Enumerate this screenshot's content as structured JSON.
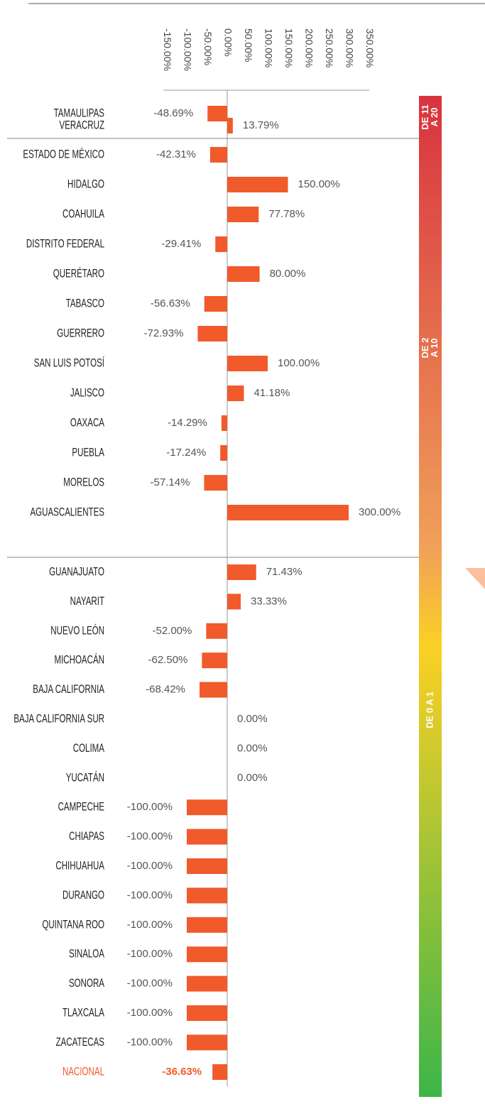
{
  "chart_data": {
    "type": "bar",
    "orientation": "horizontal",
    "color": "#f15a2b",
    "categories": [
      "TAMAULIPAS",
      "VERACRUZ",
      "ESTADO DE MÉXICO",
      "HIDALGO",
      "COAHUILA",
      "DISTRITO FEDERAL",
      "QUERÉTARO",
      "TABASCO",
      "GUERRERO",
      "SAN LUIS POTOSÍ",
      "JALISCO",
      "OAXACA",
      "PUEBLA",
      "MORELOS",
      "AGUASCALIENTES",
      "GUANAJUATO",
      "NAYARIT",
      "NUEVO LEÓN",
      "MICHOACÁN",
      "BAJA CALIFORNIA",
      "BAJA CALIFORNIA SUR",
      "COLIMA",
      "YUCATÁN",
      "CAMPECHE",
      "CHIAPAS",
      "CHIHUAHUA",
      "DURANGO",
      "QUINTANA ROO",
      "SINALOA",
      "SONORA",
      "TLAXCALA",
      "ZACATECAS"
    ],
    "values": [
      -48.69,
      13.79,
      -42.31,
      150,
      77.78,
      -29.41,
      80,
      -56.63,
      -72.93,
      100,
      41.18,
      -14.29,
      -17.24,
      -57.14,
      300,
      71.43,
      33.33,
      -52,
      -62.5,
      -68.42,
      0,
      0,
      0,
      -100,
      -100,
      -100,
      -100,
      -100,
      -100,
      -100,
      -100,
      -100
    ],
    "value_labels": [
      "-48.69%",
      "13.79%",
      "-42.31%",
      "150.00%",
      "77.78%",
      "-29.41%",
      "80.00%",
      "-56.63%",
      "-72.93%",
      "100.00%",
      "41.18%",
      "-14.29%",
      "-17.24%",
      "-57.14%",
      "300.00%",
      "71.43%",
      "33.33%",
      "-52.00%",
      "-62.50%",
      "-68.42%",
      "0.00%",
      "0.00%",
      "0.00%",
      "-100.00%",
      "-100.00%",
      "-100.00%",
      "-100.00%",
      "-100.00%",
      "-100.00%",
      "-100.00%",
      "-100.00%",
      "-100.00%"
    ],
    "total": {
      "name": "NACIONAL",
      "value": -36.63,
      "value_label": "-36.63%",
      "color": "#f15a2b"
    },
    "xlim": [
      -150,
      350
    ],
    "xticks": [
      {
        "value": -150,
        "label": "-150.00%"
      },
      {
        "value": -100,
        "label": "-100.00%"
      },
      {
        "value": -50,
        "label": "-50.00%"
      },
      {
        "value": 0,
        "label": "0.00%"
      },
      {
        "value": 50,
        "label": "50.00%"
      },
      {
        "value": 100,
        "label": "100.00%"
      },
      {
        "value": 150,
        "label": "150.00%"
      },
      {
        "value": 200,
        "label": "200.00%"
      },
      {
        "value": 250,
        "label": "250.00%"
      },
      {
        "value": 300,
        "label": "300.00%"
      },
      {
        "value": 350,
        "label": "350.00%"
      }
    ],
    "groups": [
      {
        "label": [
          "DE 11",
          "A 20"
        ]
      },
      {
        "label": [
          "DE 2",
          "A 10"
        ]
      },
      {
        "label": [
          "DE 0 A 1"
        ]
      }
    ]
  }
}
